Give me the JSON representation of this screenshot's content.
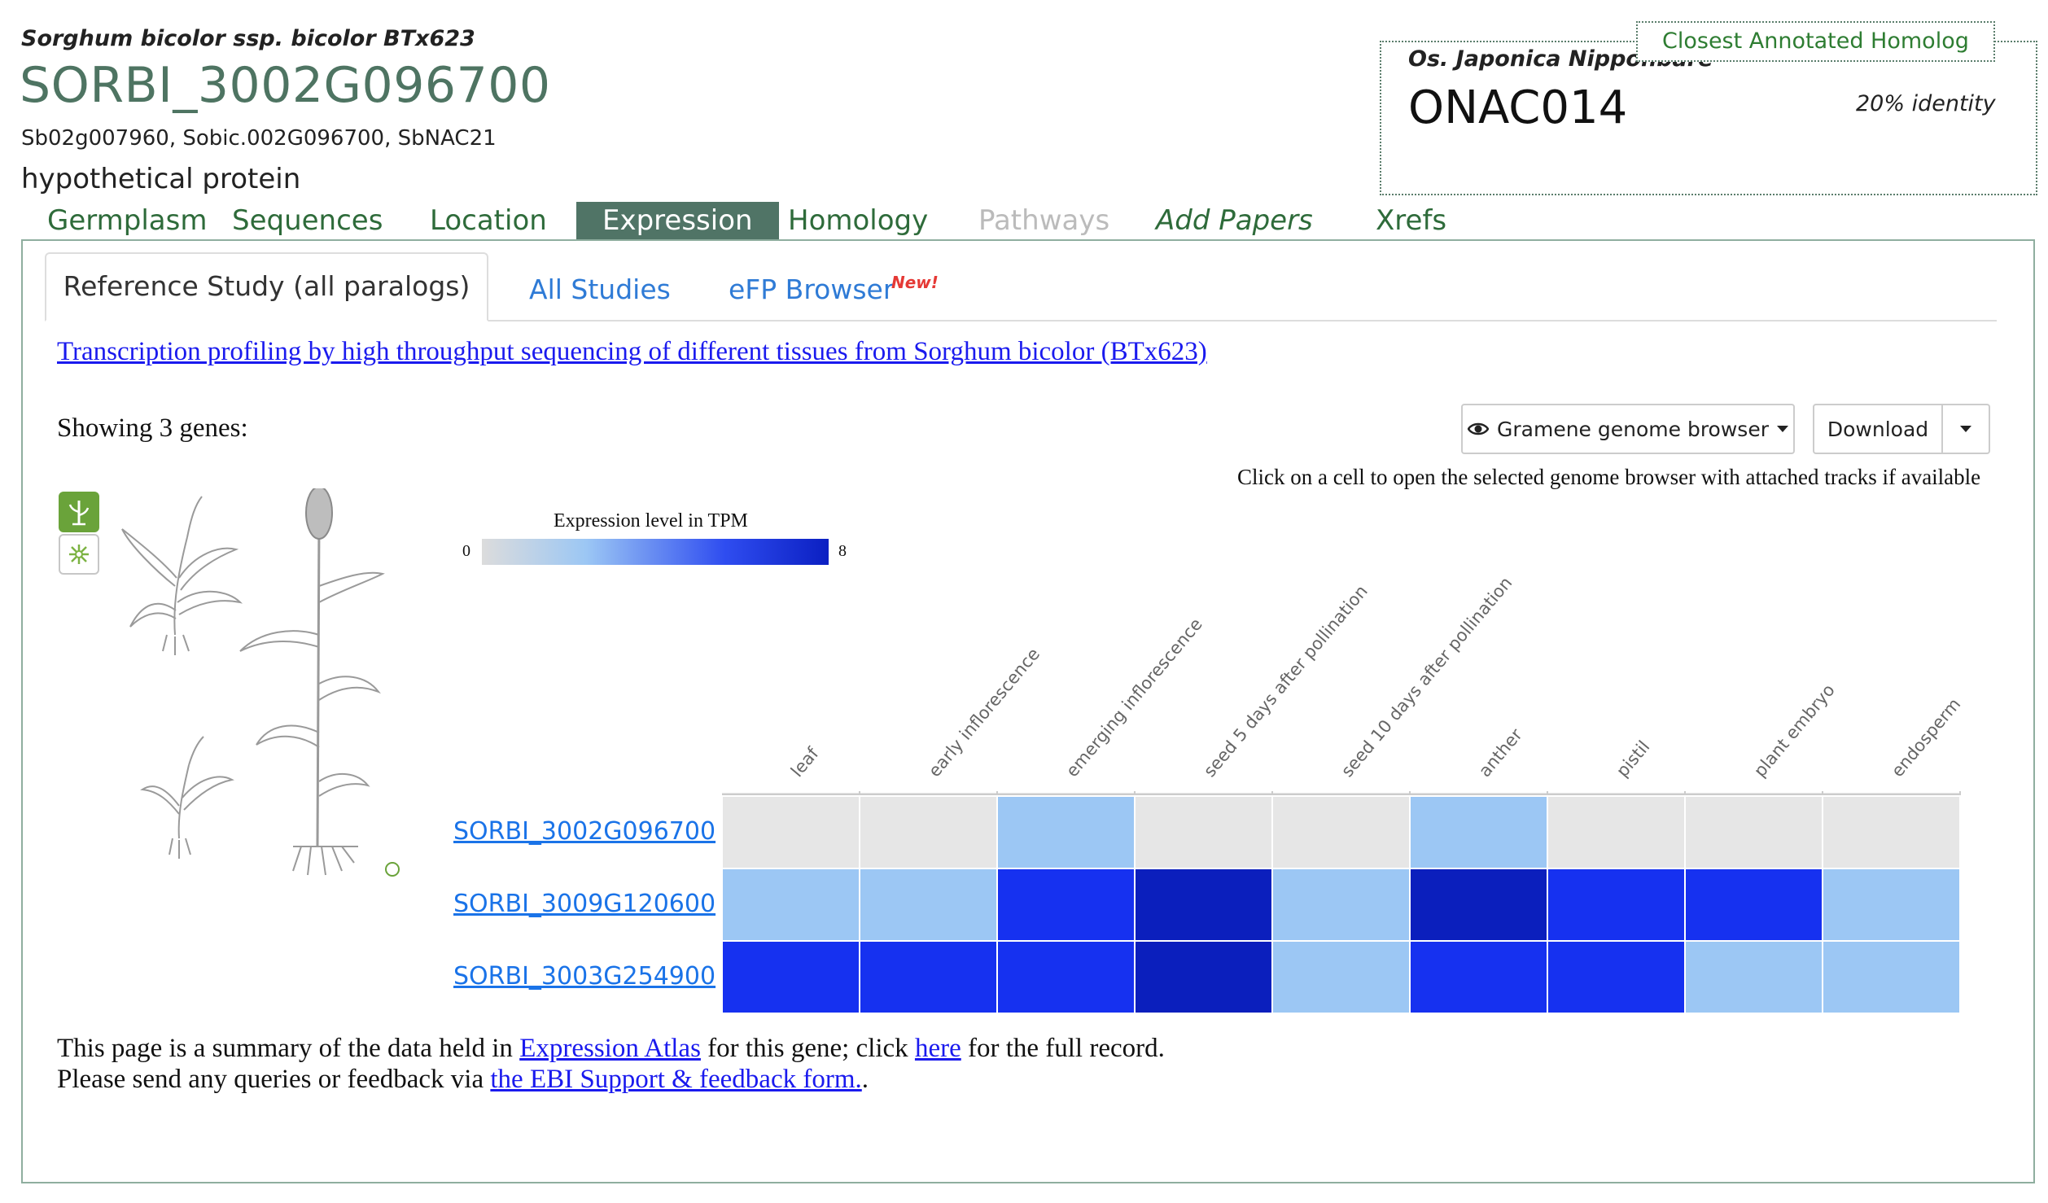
{
  "header": {
    "species": "Sorghum bicolor ssp. bicolor BTx623",
    "gene_id": "SORBI_3002G096700",
    "synonyms": "Sb02g007960, Sobic.002G096700, SbNAC21",
    "description": "hypothetical protein"
  },
  "homolog": {
    "label": "Closest Annotated Homolog",
    "species": "Os. Japonica Nipponbare",
    "gene": "ONAC014",
    "identity": "20% identity"
  },
  "nav": {
    "tabs": [
      {
        "label": "Germplasm"
      },
      {
        "label": "Sequences"
      },
      {
        "label": "Location"
      },
      {
        "label": "Expression"
      },
      {
        "label": "Homology"
      },
      {
        "label": "Pathways"
      },
      {
        "label": "Add Papers"
      },
      {
        "label": "Xrefs"
      }
    ],
    "active": "Expression"
  },
  "subtabs": {
    "reference": "Reference Study (all paralogs)",
    "all_studies": "All Studies",
    "efp": "eFP Browser",
    "efp_badge": "New!"
  },
  "study_link": "Transcription profiling by high throughput sequencing of different tissues from Sorghum bicolor (BTx623)",
  "showing": "Showing 3 genes:",
  "buttons": {
    "browser": "Gramene genome browser",
    "download": "Download"
  },
  "hint": "Click on a cell to open the selected genome browser with attached tracks if available",
  "legend": {
    "title": "Expression level in TPM",
    "min": "0",
    "max": "8"
  },
  "colors": {
    "accent_green": "#507466",
    "nav_text": "#2e6b3a",
    "link_blue": "#1a73e8",
    "no_data": "#e6e6e6",
    "low": "#9cc7f4",
    "medium": "#1631f0",
    "high": "#0b1fbd"
  },
  "chart_data": {
    "type": "heatmap",
    "title": "Expression level in TPM",
    "categories": [
      "leaf",
      "early inflorescence",
      "emerging inflorescence",
      "seed 5 days after pollination",
      "seed 10 days after pollination",
      "anther",
      "pistil",
      "plant embryo",
      "endosperm"
    ],
    "rows": [
      "SORBI_3002G096700",
      "SORBI_3009G120600",
      "SORBI_3003G254900"
    ],
    "scale": {
      "min": 0,
      "max": 8
    },
    "levels": [
      [
        "none",
        "none",
        "low",
        "none",
        "none",
        "low",
        "none",
        "none",
        "none"
      ],
      [
        "low",
        "low",
        "medium",
        "high",
        "low",
        "high",
        "medium",
        "medium",
        "low"
      ],
      [
        "medium",
        "medium",
        "medium",
        "high",
        "low",
        "medium",
        "medium",
        "low",
        "low"
      ]
    ]
  },
  "footer": {
    "line1_a": "This page is a summary of the data held in ",
    "line1_link1": "Expression Atlas",
    "line1_b": " for this gene; click ",
    "line1_link2": "here",
    "line1_c": " for the full record.",
    "line2_a": "Please send any queries or feedback via ",
    "line2_link": "the EBI Support & feedback form.",
    "line2_b": "."
  }
}
